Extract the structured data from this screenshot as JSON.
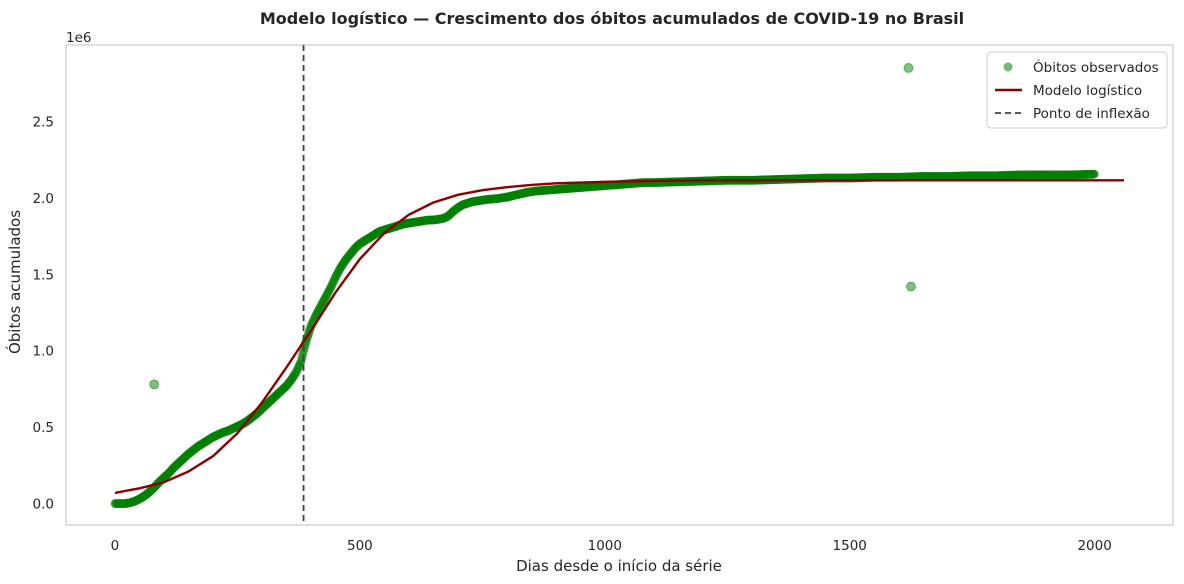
{
  "chart_data": {
    "type": "scatter",
    "title": "Modelo logístico — Crescimento dos óbitos acumulados de COVID-19 no Brasil",
    "xlabel": "Dias desde o início da série",
    "ylabel": "Óbitos acumulados",
    "y_offset_label": "1e6",
    "xlim": [
      -100,
      2160
    ],
    "ylim": [
      -0.14,
      3.0
    ],
    "x_ticks": [
      0,
      500,
      1000,
      1500,
      2000
    ],
    "x_tick_labels": [
      "0",
      "500",
      "1000",
      "1500",
      "2000"
    ],
    "y_ticks": [
      0.0,
      0.5,
      1.0,
      1.5,
      2.0,
      2.5
    ],
    "y_tick_labels": [
      "0.0",
      "0.5",
      "1.0",
      "1.5",
      "2.0",
      "2.5"
    ],
    "grid": false,
    "legend_position": "upper right",
    "legend": [
      "Óbitos observados",
      "Modelo logístico",
      "Ponto de inflexão"
    ],
    "series": [
      {
        "name": "Óbitos observados",
        "kind": "scatter",
        "color": "#008000",
        "x": [
          0,
          10,
          20,
          30,
          40,
          50,
          60,
          70,
          80,
          90,
          100,
          110,
          120,
          130,
          140,
          150,
          160,
          170,
          180,
          190,
          200,
          210,
          220,
          230,
          240,
          250,
          260,
          270,
          280,
          290,
          300,
          310,
          320,
          330,
          340,
          350,
          360,
          370,
          380,
          385,
          390,
          395,
          400,
          410,
          420,
          430,
          440,
          450,
          460,
          470,
          480,
          490,
          500,
          510,
          520,
          530,
          540,
          550,
          560,
          570,
          580,
          590,
          600,
          610,
          620,
          630,
          640,
          650,
          660,
          670,
          680,
          690,
          700,
          710,
          720,
          730,
          740,
          750,
          760,
          780,
          800,
          820,
          840,
          860,
          880,
          900,
          920,
          940,
          960,
          980,
          1000,
          1020,
          1040,
          1060,
          1080,
          1100,
          1150,
          1200,
          1250,
          1300,
          1350,
          1400,
          1450,
          1500,
          1550,
          1600,
          1650,
          1700,
          1750,
          1800,
          1850,
          1900,
          1950,
          2000,
          80,
          1620,
          1625
        ],
        "y": [
          0.0,
          0.0,
          0.0,
          0.005,
          0.015,
          0.03,
          0.05,
          0.075,
          0.105,
          0.14,
          0.17,
          0.2,
          0.235,
          0.265,
          0.295,
          0.325,
          0.35,
          0.375,
          0.395,
          0.415,
          0.435,
          0.45,
          0.465,
          0.475,
          0.49,
          0.505,
          0.52,
          0.54,
          0.565,
          0.59,
          0.62,
          0.65,
          0.68,
          0.71,
          0.74,
          0.77,
          0.81,
          0.86,
          0.93,
          1.0,
          1.06,
          1.11,
          1.16,
          1.23,
          1.29,
          1.35,
          1.41,
          1.48,
          1.54,
          1.59,
          1.63,
          1.67,
          1.7,
          1.72,
          1.74,
          1.76,
          1.78,
          1.79,
          1.8,
          1.81,
          1.82,
          1.83,
          1.835,
          1.84,
          1.845,
          1.85,
          1.855,
          1.855,
          1.86,
          1.865,
          1.88,
          1.91,
          1.935,
          1.955,
          1.965,
          1.975,
          1.98,
          1.985,
          1.99,
          1.995,
          2.005,
          2.02,
          2.035,
          2.045,
          2.05,
          2.055,
          2.06,
          2.065,
          2.07,
          2.075,
          2.08,
          2.085,
          2.09,
          2.095,
          2.1,
          2.1,
          2.105,
          2.11,
          2.115,
          2.115,
          2.12,
          2.125,
          2.13,
          2.13,
          2.135,
          2.135,
          2.14,
          2.14,
          2.145,
          2.145,
          2.15,
          2.15,
          2.15,
          2.155,
          0.78,
          2.85,
          1.42
        ]
      },
      {
        "name": "Modelo logístico",
        "kind": "line",
        "color": "#8b0000",
        "x": [
          0,
          50,
          100,
          150,
          200,
          250,
          300,
          350,
          385,
          400,
          450,
          500,
          550,
          600,
          650,
          700,
          750,
          800,
          850,
          900,
          1000,
          1100,
          1200,
          1300,
          1400,
          1500,
          1600,
          1700,
          1800,
          1900,
          2000,
          2060
        ],
        "y": [
          0.07,
          0.1,
          0.14,
          0.21,
          0.31,
          0.46,
          0.66,
          0.89,
          1.06,
          1.13,
          1.38,
          1.6,
          1.77,
          1.89,
          1.97,
          2.02,
          2.05,
          2.07,
          2.085,
          2.095,
          2.105,
          2.11,
          2.115,
          2.115,
          2.115,
          2.115,
          2.115,
          2.115,
          2.115,
          2.115,
          2.115,
          2.115
        ]
      },
      {
        "name": "Ponto de inflexão",
        "kind": "vline",
        "color": "#404040",
        "x": 385
      }
    ]
  }
}
